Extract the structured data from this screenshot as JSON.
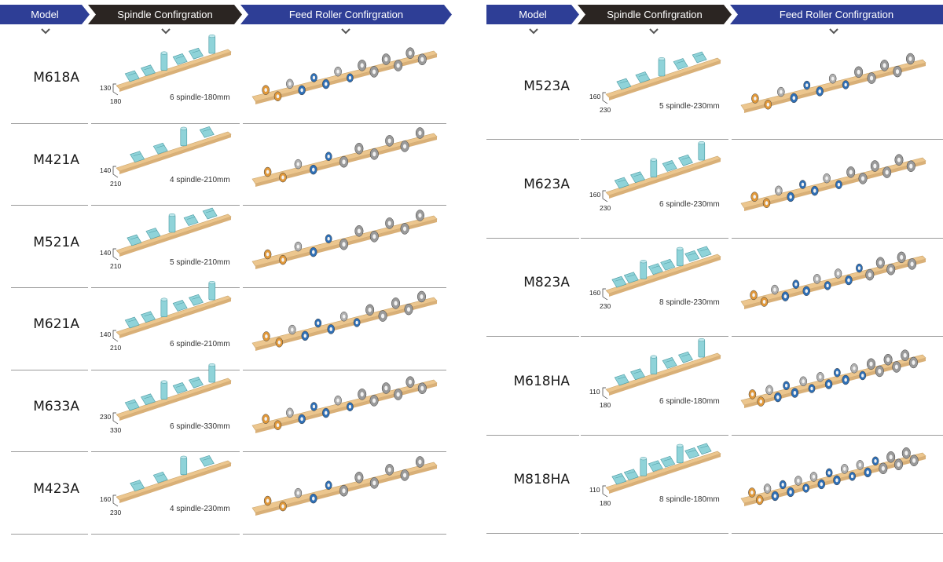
{
  "tables": [
    {
      "headers": {
        "model": "Model",
        "spindle": "Spindle Confirgration",
        "feed": "Feed Roller Confirgration"
      },
      "rows": [
        {
          "model": "M618A",
          "label": "6 spindle-180mm",
          "dim_a": "130",
          "dim_b": "180",
          "spindles": 6,
          "rollers": 14
        },
        {
          "model": "M421A",
          "label": "4 spindle-210mm",
          "dim_a": "140",
          "dim_b": "210",
          "spindles": 4,
          "rollers": 11
        },
        {
          "model": "M521A",
          "label": "5 spindle-210mm",
          "dim_a": "140",
          "dim_b": "210",
          "spindles": 5,
          "rollers": 11
        },
        {
          "model": "M621A",
          "label": "6 spindle-210mm",
          "dim_a": "140",
          "dim_b": "210",
          "spindles": 6,
          "rollers": 13
        },
        {
          "model": "M633A",
          "label": "6 spindle-330mm",
          "dim_a": "230",
          "dim_b": "330",
          "spindles": 6,
          "rollers": 14
        },
        {
          "model": "M423A",
          "label": "4 spindle-230mm",
          "dim_a": "160",
          "dim_b": "230",
          "spindles": 4,
          "rollers": 11
        }
      ]
    },
    {
      "headers": {
        "model": "Model",
        "spindle": "Spindle Confirgration",
        "feed": "Feed Roller Confirgration"
      },
      "rows": [
        {
          "model": "M523A",
          "label": "5 spindle-230mm",
          "dim_a": "160",
          "dim_b": "230",
          "spindles": 5,
          "rollers": 13
        },
        {
          "model": "M623A",
          "label": "6 spindle-230mm",
          "dim_a": "160",
          "dim_b": "230",
          "spindles": 6,
          "rollers": 14
        },
        {
          "model": "M823A",
          "label": "8 spindle-230mm",
          "dim_a": "160",
          "dim_b": "230",
          "spindles": 8,
          "rollers": 16
        },
        {
          "model": "M618HA",
          "label": "6 spindle-180mm",
          "dim_a": "110",
          "dim_b": "180",
          "spindles": 6,
          "rollers": 20
        },
        {
          "model": "M818HA",
          "label": "8 spindle-180mm",
          "dim_a": "110",
          "dim_b": "180",
          "spindles": 8,
          "rollers": 22
        }
      ]
    }
  ],
  "colors": {
    "header_blue": "#2e3e96",
    "header_dark": "#2b2522",
    "wood": "#ecc68e",
    "spindle": "#8fd3d9",
    "roller_blue": "#2f6fb5",
    "roller_orange": "#e0983a",
    "roller_grey": "#6e6e6e"
  }
}
